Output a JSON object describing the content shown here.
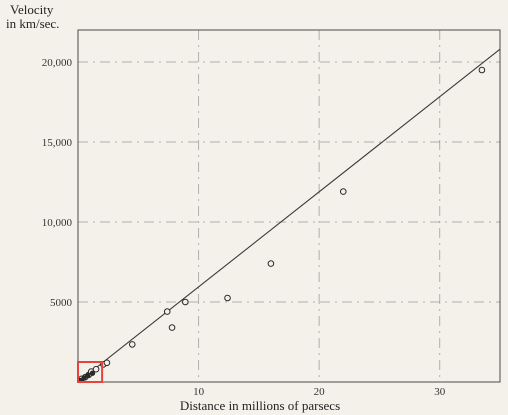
{
  "chart_data": {
    "type": "scatter",
    "ylabel_line1": "Velocity",
    "ylabel_line2": "in km/sec.",
    "xlabel": "Distance in millions of parsecs",
    "xlim": [
      0,
      35
    ],
    "ylim": [
      0,
      22000
    ],
    "x_ticks": [
      {
        "value": 10,
        "label": "10"
      },
      {
        "value": 20,
        "label": "20"
      },
      {
        "value": 30,
        "label": "30"
      }
    ],
    "y_ticks": [
      {
        "value": 5000,
        "label": "5000"
      },
      {
        "value": 10000,
        "label": "10,000"
      },
      {
        "value": 15000,
        "label": "15,000"
      },
      {
        "value": 20000,
        "label": "20,000"
      }
    ],
    "grid": true,
    "series": [
      {
        "marker": "open-circle",
        "points": [
          {
            "x": 0.3,
            "y": 200
          },
          {
            "x": 0.6,
            "y": 300
          },
          {
            "x": 0.9,
            "y": 450
          },
          {
            "x": 1.1,
            "y": 650
          },
          {
            "x": 1.5,
            "y": 800
          },
          {
            "x": 2.1,
            "y": 1100
          },
          {
            "x": 2.4,
            "y": 1200
          },
          {
            "x": 4.5,
            "y": 2350
          },
          {
            "x": 7.4,
            "y": 4400
          },
          {
            "x": 7.8,
            "y": 3400
          },
          {
            "x": 8.9,
            "y": 5000
          },
          {
            "x": 12.4,
            "y": 5250
          },
          {
            "x": 16.0,
            "y": 7400
          },
          {
            "x": 22.0,
            "y": 11900
          },
          {
            "x": 33.5,
            "y": 19500
          }
        ]
      },
      {
        "marker": "filled-dot",
        "points": [
          {
            "x": 0.2,
            "y": 100
          },
          {
            "x": 0.5,
            "y": 250
          },
          {
            "x": 0.8,
            "y": 400
          },
          {
            "x": 1.2,
            "y": 550
          }
        ]
      }
    ],
    "fit_line": {
      "x": [
        0,
        35
      ],
      "y": [
        0,
        20800
      ]
    },
    "highlight_box": {
      "x": [
        0,
        2
      ],
      "y": [
        0,
        1250
      ],
      "color": "#e8423f"
    }
  }
}
